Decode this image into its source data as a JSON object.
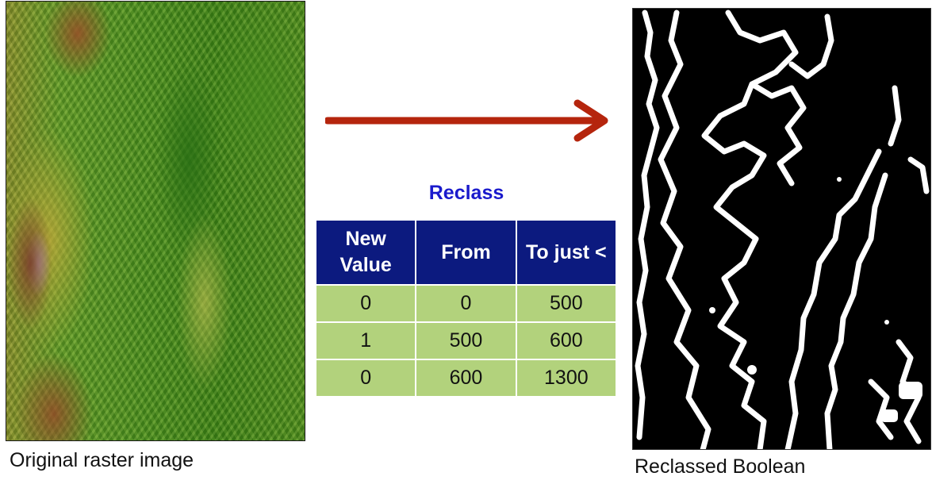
{
  "left_panel": {
    "caption": "Original raster image",
    "image_icon": "shaded-relief-elevation-raster"
  },
  "arrow": {
    "color": "#b5250d",
    "icon": "right-arrow"
  },
  "reclass": {
    "title": "Reclass",
    "title_color": "#1a1acc",
    "header_color": "#0c1a7f",
    "row_color": "#b2d27c",
    "headers": [
      "New Value",
      "From",
      "To just <"
    ],
    "rows": [
      [
        "0",
        "0",
        "500"
      ],
      [
        "1",
        "500",
        "600"
      ],
      [
        "0",
        "600",
        "1300"
      ]
    ]
  },
  "right_panel": {
    "caption": "Reclassed Boolean",
    "image_icon": "boolean-black-white-raster"
  }
}
